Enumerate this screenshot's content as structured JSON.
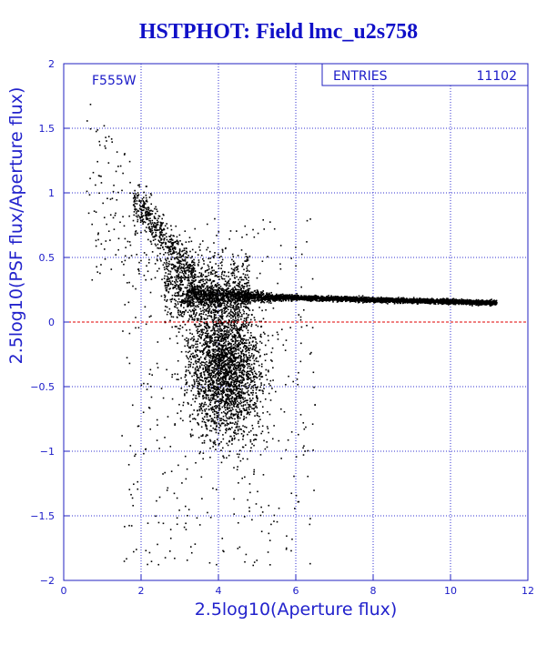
{
  "page": {
    "title": "HSTPHOT: Field lmc_u2s758"
  },
  "colors": {
    "background": "#ffffff",
    "axes": "#2020c0",
    "grid": "#3030d0",
    "points": "#000000",
    "reference_line": "#e00000",
    "text": "#1a1ac8"
  },
  "chart_data": {
    "type": "scatter",
    "title": "HSTPHOT: Field lmc_u2s758",
    "xlabel": "2.5log10(Aperture flux)",
    "ylabel": "2.5log10(PSF flux/Aperture flux)",
    "xlim": [
      0,
      12
    ],
    "ylim": [
      -2,
      2
    ],
    "x_ticks": [
      "0",
      "2",
      "4",
      "6",
      "8",
      "10",
      "12"
    ],
    "y_ticks": [
      "-2",
      "-1.5",
      "-1",
      "-0.5",
      "0",
      "0.5",
      "1",
      "1.5",
      "2"
    ],
    "grid": true,
    "filter_label": "F555W",
    "stats_box": {
      "label": "ENTRIES",
      "value": "11102"
    },
    "reference_line_y": 0,
    "entries": 11102,
    "distribution": {
      "main_sequence": {
        "x_range": [
          3.0,
          11.2
        ],
        "y_start": 0.2,
        "y_end": 0.15
      },
      "faint_scatter": {
        "x_range": [
          1.5,
          6.5
        ],
        "y_range": [
          -1.9,
          0.8
        ]
      },
      "bright_outliers": {
        "x_range": [
          0.5,
          2.5
        ],
        "y_range": [
          0.7,
          1.8
        ]
      }
    }
  }
}
